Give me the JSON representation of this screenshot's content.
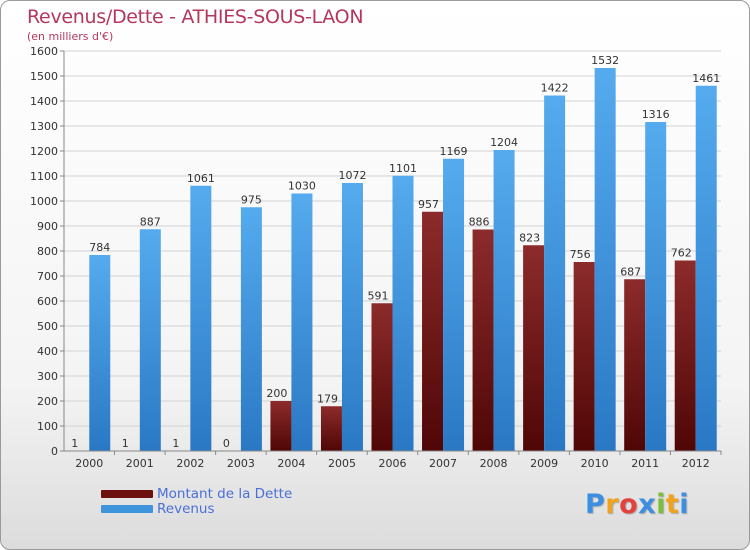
{
  "title": "Revenus/Dette - ATHIES-SOUS-LAON",
  "subtitle": "(en milliers d'€)",
  "logo": {
    "letters": [
      {
        "ch": "P",
        "color": "#3c8ee0"
      },
      {
        "ch": "r",
        "color": "#f0a21c"
      },
      {
        "ch": "o",
        "color": "#e2423b"
      },
      {
        "ch": "x",
        "color": "#3c8ee0"
      },
      {
        "ch": "i",
        "color": "#7cbf3a"
      },
      {
        "ch": "t",
        "color": "#f0a21c"
      },
      {
        "ch": "i",
        "color": "#3c8ee0"
      }
    ]
  },
  "chart_data": {
    "type": "bar",
    "categories": [
      "2000",
      "2001",
      "2002",
      "2003",
      "2004",
      "2005",
      "2006",
      "2007",
      "2008",
      "2009",
      "2010",
      "2011",
      "2012"
    ],
    "series": [
      {
        "name": "Montant de la Dette",
        "color": "#7a1a1a",
        "values": [
          1,
          1,
          1,
          0,
          200,
          179,
          591,
          957,
          886,
          823,
          756,
          687,
          762
        ]
      },
      {
        "name": "Revenus",
        "color": "#3f95dc",
        "values": [
          784,
          887,
          1061,
          975,
          1030,
          1072,
          1101,
          1169,
          1204,
          1422,
          1532,
          1316,
          1461
        ]
      }
    ],
    "ylim": [
      0,
      1600
    ],
    "yticks": [
      0,
      100,
      200,
      300,
      400,
      500,
      600,
      700,
      800,
      900,
      1000,
      1100,
      1200,
      1300,
      1400,
      1500,
      1600
    ],
    "grid": true,
    "legend": "bottom-left"
  }
}
